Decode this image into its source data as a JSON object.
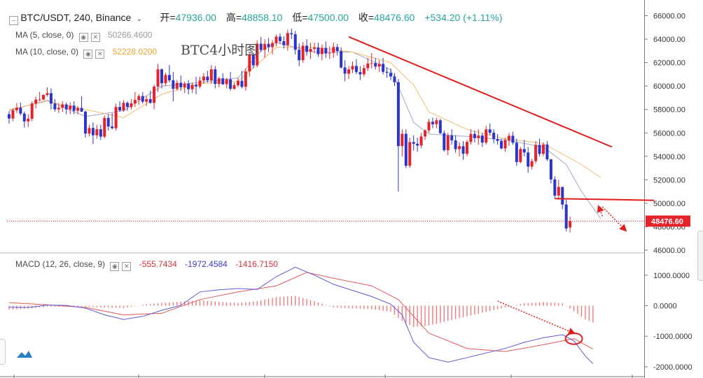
{
  "header": {
    "symbol": "BTC/USDT, 240, Binance",
    "open_label": "开=",
    "open": "47936.00",
    "high_label": "高=",
    "high": "48858.10",
    "low_label": "低=",
    "low": "47500.00",
    "close_label": "收=",
    "close": "48476.60",
    "change": "+534.20 (+1.11%)"
  },
  "indicators": {
    "ma5_label": "MA (5, close, 0)",
    "ma5_value": "50266.4600",
    "ma10_label": "MA (10, close, 0)",
    "ma10_value": "52228.0200",
    "macd_label": "MACD (12, 26, close, 9)",
    "macd_hist": "-555.7434",
    "macd_line": "-1972.4584",
    "macd_signal": "-1416.7150"
  },
  "annotation": {
    "text": "BTC4小时图",
    "color": "#e01e1e"
  },
  "colors": {
    "up": "#e5222a",
    "down": "#2a35c9",
    "ma5": "#a6a6c8",
    "ma10": "#f0bd6a",
    "trend": "#e01e1e",
    "macd": "#5a5ad6",
    "signal": "#e35a5a"
  },
  "icons": {
    "eye": "eye-icon",
    "close": "close-icon",
    "chevron": "chevron-down-icon",
    "logo": "tradingview-logo-icon"
  },
  "chart_data": {
    "type": "candlestick",
    "last_price_label": "48476.60",
    "price_axis": {
      "min": 46000,
      "max": 66000,
      "ticks": [
        "46000.00",
        "48000.00",
        "50000.00",
        "52000.00",
        "54000.00",
        "56000.00",
        "58000.00",
        "60000.00",
        "62000.00",
        "64000.00",
        "66000.00"
      ]
    },
    "macd_axis": {
      "min": -2000,
      "max": 1000,
      "ticks": [
        "1000.0000",
        "0.0000",
        "-1000.0000",
        "-2000.0000"
      ]
    },
    "candles": [
      [
        57600,
        57850,
        56800,
        57230
      ],
      [
        57230,
        58100,
        57000,
        57936
      ],
      [
        57936,
        58550,
        57700,
        58146
      ],
      [
        58146,
        58600,
        57500,
        57650
      ],
      [
        57650,
        57835,
        56450,
        56981
      ],
      [
        56981,
        57600,
        56500,
        57212
      ],
      [
        57212,
        58700,
        57000,
        58513
      ],
      [
        58513,
        59100,
        58100,
        58846
      ],
      [
        58846,
        59500,
        58700,
        58848
      ],
      [
        58848,
        59300,
        58800,
        59236
      ],
      [
        59236,
        59900,
        59100,
        59395
      ],
      [
        59395,
        59800,
        58000,
        58500
      ],
      [
        58500,
        58900,
        57820,
        58013
      ],
      [
        58013,
        58500,
        57700,
        58143
      ],
      [
        58143,
        58700,
        57800,
        58428
      ],
      [
        58428,
        58600,
        57600,
        58007
      ],
      [
        58007,
        58600,
        57600,
        58326
      ],
      [
        58326,
        58700,
        57600,
        57890
      ],
      [
        57890,
        58300,
        57600,
        58126
      ],
      [
        58126,
        59120,
        57800,
        57817
      ],
      [
        57817,
        57900,
        55600,
        55950
      ],
      [
        55950,
        56700,
        55700,
        56419
      ],
      [
        56419,
        56900,
        55050,
        55803
      ],
      [
        55803,
        56700,
        55500,
        56314
      ],
      [
        56314,
        56700,
        55400,
        55683
      ],
      [
        55683,
        57500,
        55550,
        57280
      ],
      [
        57280,
        57600,
        56200,
        56550
      ],
      [
        56550,
        57700,
        56300,
        56400
      ],
      [
        56400,
        58500,
        56200,
        58213
      ],
      [
        58213,
        58700,
        57800,
        57925
      ],
      [
        57925,
        58800,
        57800,
        58567
      ],
      [
        58567,
        58700,
        57900,
        58209
      ],
      [
        58209,
        58900,
        58000,
        58519
      ],
      [
        58519,
        59500,
        58200,
        58813
      ],
      [
        58813,
        59300,
        58400,
        59148
      ],
      [
        59148,
        59500,
        58500,
        58665
      ],
      [
        58665,
        59200,
        58300,
        58884
      ],
      [
        58884,
        59600,
        58500,
        58559
      ],
      [
        58559,
        60100,
        58000,
        59952
      ],
      [
        59952,
        61900,
        59500,
        61428
      ],
      [
        61428,
        61500,
        59800,
        60243
      ],
      [
        60243,
        61150,
        60000,
        60947
      ],
      [
        60947,
        61800,
        60300,
        60489
      ],
      [
        60489,
        61200,
        58700,
        59763
      ],
      [
        59763,
        60500,
        59600,
        60275
      ],
      [
        60275,
        60900,
        59600,
        59893
      ],
      [
        59893,
        60400,
        59400,
        60206
      ],
      [
        60206,
        60500,
        59300,
        59727
      ],
      [
        59727,
        60300,
        59400,
        60104
      ],
      [
        60104,
        60800,
        59300,
        59962
      ],
      [
        59962,
        60800,
        59800,
        60474
      ],
      [
        60474,
        61100,
        60200,
        60809
      ],
      [
        60809,
        61300,
        60300,
        60483
      ],
      [
        60483,
        61800,
        60200,
        61428
      ],
      [
        61428,
        61700,
        59800,
        60180
      ],
      [
        60180,
        60800,
        59900,
        60653
      ],
      [
        60653,
        61100,
        60100,
        60153
      ],
      [
        60153,
        60700,
        59800,
        60571
      ],
      [
        60571,
        61200,
        59600,
        59766
      ],
      [
        59766,
        60300,
        59700,
        60065
      ],
      [
        60065,
        60700,
        59900,
        60449
      ],
      [
        60449,
        61300,
        59800,
        59929
      ],
      [
        59929,
        61500,
        59600,
        61249
      ],
      [
        61249,
        62800,
        60800,
        62690
      ],
      [
        62690,
        62800,
        61500,
        61769
      ],
      [
        61769,
        63900,
        61600,
        63619
      ],
      [
        63619,
        64200,
        62900,
        63089
      ],
      [
        63089,
        64000,
        62400,
        63598
      ],
      [
        63598,
        64100,
        62900,
        63316
      ],
      [
        63316,
        63900,
        62700,
        63670
      ],
      [
        63670,
        64400,
        63400,
        64209
      ],
      [
        64209,
        64500,
        63600,
        63831
      ],
      [
        63831,
        64250,
        63200,
        63487
      ],
      [
        63487,
        64800,
        63000,
        64513
      ],
      [
        64513,
        64900,
        64000,
        64412
      ],
      [
        64412,
        64700,
        62700,
        63100
      ],
      [
        63100,
        63650,
        61700,
        62205
      ],
      [
        62205,
        63750,
        62000,
        63440
      ],
      [
        63440,
        64000,
        62600,
        62912
      ],
      [
        62912,
        63700,
        62300,
        63168
      ],
      [
        63168,
        63700,
        62800,
        63291
      ],
      [
        63291,
        63700,
        62500,
        62721
      ],
      [
        62721,
        63550,
        62200,
        63257
      ],
      [
        63257,
        63800,
        62400,
        62779
      ],
      [
        62779,
        63400,
        62300,
        62833
      ],
      [
        62833,
        63700,
        62400,
        63328
      ],
      [
        63328,
        63600,
        62600,
        62984
      ],
      [
        62984,
        63300,
        61500,
        61580
      ],
      [
        61580,
        62200,
        60400,
        61055
      ],
      [
        61055,
        61700,
        60600,
        61418
      ],
      [
        61418,
        62100,
        61100,
        61709
      ],
      [
        61709,
        62300,
        61000,
        61192
      ],
      [
        61192,
        61700,
        60500,
        61002
      ],
      [
        61002,
        61800,
        60800,
        61529
      ],
      [
        61529,
        62400,
        61300,
        61920
      ],
      [
        61920,
        62800,
        61500,
        61954
      ],
      [
        61954,
        62400,
        61400,
        61660
      ],
      [
        61660,
        62200,
        61200,
        61893
      ],
      [
        61893,
        62400,
        61000,
        61214
      ],
      [
        61214,
        61600,
        60700,
        61131
      ],
      [
        61131,
        61500,
        60500,
        60815
      ],
      [
        60815,
        61100,
        60000,
        60330
      ],
      [
        60330,
        60600,
        51000,
        54883
      ],
      [
        54883,
        56300,
        54000,
        55927
      ],
      [
        55927,
        56300,
        53000,
        53201
      ],
      [
        53201,
        55600,
        53000,
        55223
      ],
      [
        55223,
        55800,
        54500,
        55075
      ],
      [
        55075,
        55600,
        54400,
        54922
      ],
      [
        54922,
        56000,
        54700,
        55697
      ],
      [
        55697,
        56300,
        55400,
        56220
      ],
      [
        56220,
        57200,
        56000,
        56948
      ],
      [
        56948,
        57300,
        56400,
        56744
      ],
      [
        56744,
        57300,
        56400,
        57076
      ],
      [
        57076,
        57200,
        55900,
        55980
      ],
      [
        55980,
        56200,
        54400,
        54532
      ],
      [
        54532,
        56000,
        54100,
        55788
      ],
      [
        55788,
        56300,
        55000,
        55364
      ],
      [
        55364,
        55800,
        54300,
        54614
      ],
      [
        54614,
        55200,
        54000,
        54868
      ],
      [
        54868,
        55300,
        53700,
        54218
      ],
      [
        54218,
        55400,
        54000,
        55235
      ],
      [
        55235,
        56300,
        55000,
        55916
      ],
      [
        55916,
        56200,
        55200,
        55557
      ],
      [
        55557,
        56300,
        55000,
        55781
      ],
      [
        55781,
        56000,
        54800,
        55179
      ],
      [
        55179,
        56600,
        55000,
        56301
      ],
      [
        56301,
        56800,
        55800,
        56016
      ],
      [
        56016,
        56300,
        55100,
        55471
      ],
      [
        55471,
        55900,
        55000,
        55323
      ],
      [
        55323,
        55500,
        54600,
        54679
      ],
      [
        54679,
        55600,
        54400,
        55376
      ],
      [
        55376,
        56000,
        54900,
        55762
      ],
      [
        55762,
        56100,
        55000,
        55163
      ],
      [
        55163,
        55500,
        53200,
        53520
      ],
      [
        53520,
        54800,
        53400,
        54624
      ],
      [
        54624,
        55400,
        54000,
        54332
      ],
      [
        54332,
        54800,
        52600,
        53126
      ],
      [
        53126,
        53800,
        52900,
        53591
      ],
      [
        53591,
        55300,
        53400,
        54982
      ],
      [
        54982,
        55500,
        54000,
        54211
      ],
      [
        54211,
        55200,
        54000,
        55008
      ],
      [
        55008,
        55300,
        53600,
        53747
      ],
      [
        53747,
        53800,
        51700,
        52032
      ],
      [
        52032,
        52300,
        50400,
        50653
      ],
      [
        50653,
        52000,
        50300,
        51395
      ],
      [
        51395,
        51400,
        49500,
        49890
      ],
      [
        49890,
        50300,
        47600,
        47851
      ],
      [
        47936,
        48858,
        47500,
        48476
      ]
    ],
    "ma5": [
      [
        0,
        57900
      ],
      [
        10,
        58800
      ],
      [
        20,
        57400
      ],
      [
        30,
        57900
      ],
      [
        40,
        60000
      ],
      [
        50,
        60300
      ],
      [
        60,
        60700
      ],
      [
        66,
        63000
      ],
      [
        70,
        63700
      ],
      [
        80,
        62900
      ],
      [
        90,
        62900
      ],
      [
        100,
        61400
      ],
      [
        103,
        59200
      ],
      [
        106,
        56900
      ],
      [
        110,
        55900
      ],
      [
        120,
        55700
      ],
      [
        130,
        55400
      ],
      [
        140,
        54800
      ],
      [
        146,
        53300
      ],
      [
        150,
        51000
      ],
      [
        155,
        48700
      ]
    ],
    "ma10": [
      [
        0,
        58000
      ],
      [
        10,
        58700
      ],
      [
        20,
        58000
      ],
      [
        30,
        57300
      ],
      [
        40,
        59300
      ],
      [
        50,
        60200
      ],
      [
        60,
        60400
      ],
      [
        70,
        63300
      ],
      [
        80,
        63300
      ],
      [
        90,
        62900
      ],
      [
        100,
        62000
      ],
      [
        106,
        60100
      ],
      [
        110,
        57800
      ],
      [
        120,
        56300
      ],
      [
        130,
        55500
      ],
      [
        140,
        55100
      ],
      [
        150,
        53300
      ],
      [
        155,
        52200
      ]
    ],
    "trend_lines": [
      {
        "from": [
          89,
          64200
        ],
        "to": [
          158,
          54800
        ]
      },
      {
        "from": [
          143,
          50400
        ],
        "to": [
          169,
          50250
        ]
      }
    ],
    "price_level": 48476.6,
    "arrows_price": [
      {
        "from": [
          155.5,
          48900
        ],
        "to": [
          154.5,
          49700
        ]
      },
      {
        "from": [
          155.5,
          49700
        ],
        "to": [
          161.5,
          47700
        ]
      }
    ],
    "macd_line": [
      [
        0,
        -50
      ],
      [
        5,
        -60
      ],
      [
        10,
        20
      ],
      [
        15,
        10
      ],
      [
        20,
        -80
      ],
      [
        25,
        -300
      ],
      [
        30,
        -450
      ],
      [
        35,
        -350
      ],
      [
        40,
        -150
      ],
      [
        45,
        10
      ],
      [
        50,
        450
      ],
      [
        55,
        520
      ],
      [
        60,
        560
      ],
      [
        65,
        530
      ],
      [
        70,
        950
      ],
      [
        75,
        1260
      ],
      [
        80,
        1000
      ],
      [
        85,
        700
      ],
      [
        90,
        500
      ],
      [
        95,
        300
      ],
      [
        100,
        50
      ],
      [
        103,
        -300
      ],
      [
        106,
        -1200
      ],
      [
        110,
        -1700
      ],
      [
        115,
        -1850
      ],
      [
        120,
        -1700
      ],
      [
        125,
        -1550
      ],
      [
        130,
        -1400
      ],
      [
        135,
        -1200
      ],
      [
        140,
        -1050
      ],
      [
        145,
        -950
      ],
      [
        148,
        -1150
      ],
      [
        151,
        -1650
      ],
      [
        153,
        -1900
      ]
    ],
    "signal_line": [
      [
        0,
        100
      ],
      [
        10,
        30
      ],
      [
        20,
        -60
      ],
      [
        30,
        -300
      ],
      [
        40,
        -250
      ],
      [
        50,
        200
      ],
      [
        60,
        450
      ],
      [
        70,
        650
      ],
      [
        78,
        1090
      ],
      [
        85,
        900
      ],
      [
        95,
        650
      ],
      [
        102,
        200
      ],
      [
        110,
        -900
      ],
      [
        120,
        -1400
      ],
      [
        130,
        -1500
      ],
      [
        140,
        -1280
      ],
      [
        148,
        -1080
      ],
      [
        153,
        -1420
      ]
    ],
    "macd_hist": [
      [
        0,
        -130
      ],
      [
        5,
        -90
      ],
      [
        10,
        -40
      ],
      [
        15,
        -30
      ],
      [
        20,
        -40
      ],
      [
        25,
        -60
      ],
      [
        30,
        -80
      ],
      [
        35,
        30
      ],
      [
        40,
        90
      ],
      [
        45,
        130
      ],
      [
        50,
        180
      ],
      [
        55,
        130
      ],
      [
        60,
        90
      ],
      [
        65,
        150
      ],
      [
        70,
        280
      ],
      [
        75,
        320
      ],
      [
        80,
        150
      ],
      [
        85,
        -60
      ],
      [
        90,
        -90
      ],
      [
        95,
        -110
      ],
      [
        100,
        -200
      ],
      [
        103,
        -500
      ],
      [
        106,
        -700
      ],
      [
        110,
        -650
      ],
      [
        115,
        -500
      ],
      [
        120,
        -350
      ],
      [
        125,
        -200
      ],
      [
        130,
        -60
      ],
      [
        135,
        80
      ],
      [
        140,
        120
      ],
      [
        145,
        80
      ],
      [
        148,
        -180
      ],
      [
        151,
        -450
      ],
      [
        153,
        -550
      ]
    ],
    "arrows_macd": [
      {
        "from": [
          128,
          150
        ],
        "to": [
          148,
          -900
        ]
      }
    ]
  }
}
